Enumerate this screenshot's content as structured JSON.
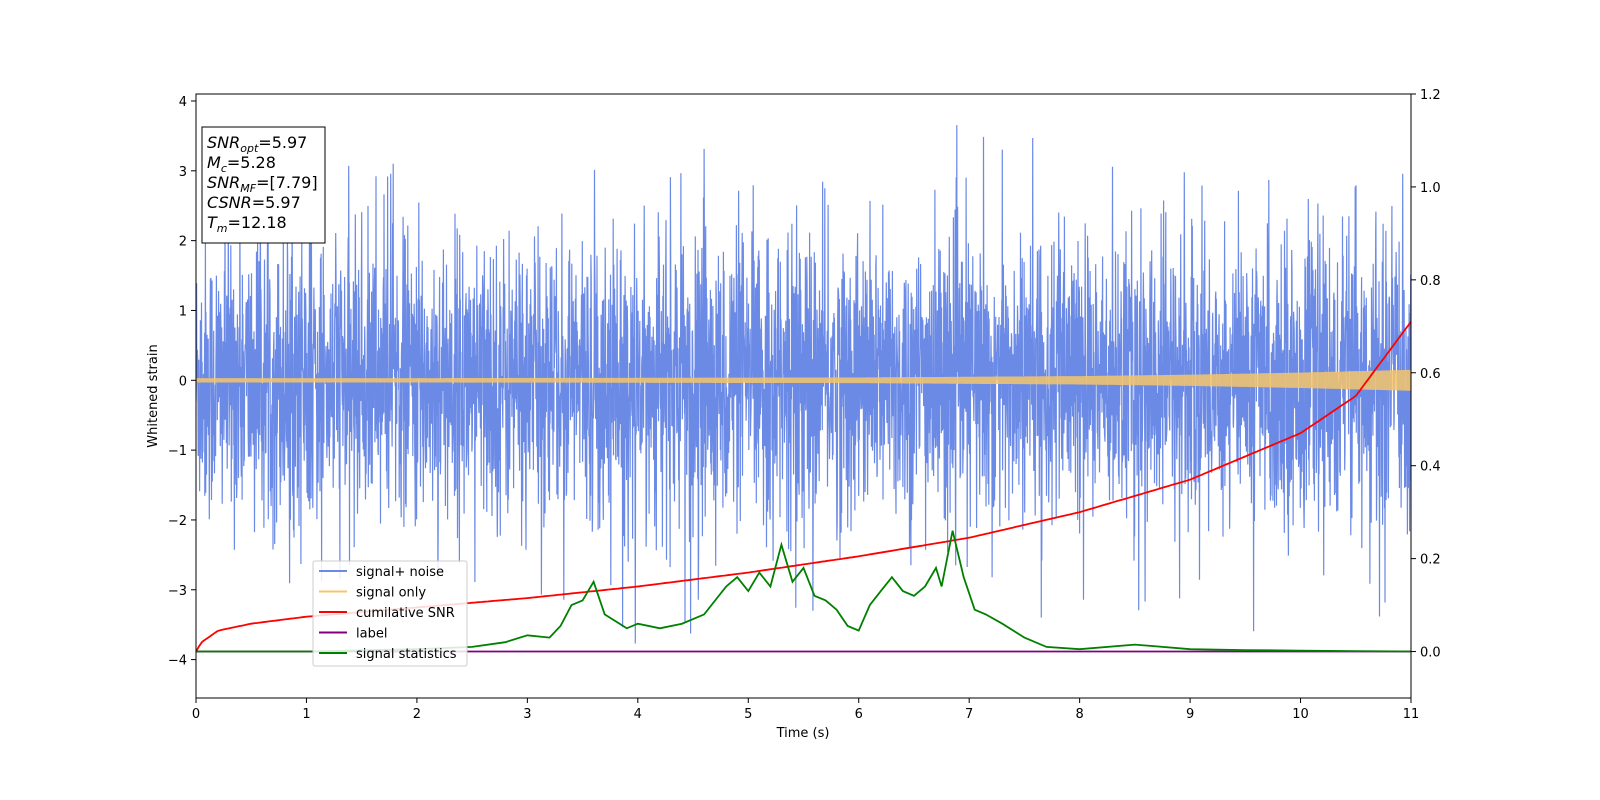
{
  "chart_data": {
    "type": "line",
    "xlabel": "Time (s)",
    "ylabel": "Whitened strain",
    "xlim": [
      0,
      11
    ],
    "ylim": [
      -4.55,
      4.1
    ],
    "y2lim": [
      -0.1,
      1.2
    ],
    "xticks": [
      0,
      1,
      2,
      3,
      4,
      5,
      6,
      7,
      8,
      9,
      10,
      11
    ],
    "yticks": [
      -4,
      -3,
      -2,
      -1,
      0,
      1,
      2,
      3,
      4
    ],
    "y2ticks": [
      "0.0",
      "0.2",
      "0.4",
      "0.6",
      "0.8",
      "1.0",
      "1.2"
    ],
    "grid": false,
    "legend_position": "lower-left",
    "colors": {
      "noise": "#6b8ae6",
      "signal": "#f5c46a",
      "csnr": "#ff0000",
      "label": "#800080",
      "stats": "#008000"
    },
    "series": [
      {
        "name": "signal+ noise",
        "color": "#6b8ae6",
        "description_stats": {
          "mean": 0,
          "sd": 1.0
        },
        "envelope_x": [
          0,
          1,
          2,
          3,
          4,
          5,
          6,
          7,
          8,
          9,
          10,
          11
        ],
        "envelope_upper": [
          2.7,
          3.1,
          3.1,
          3.2,
          3.2,
          3.4,
          3.3,
          3.7,
          3.3,
          3.2,
          3.0,
          3.1
        ],
        "envelope_lower": [
          -3.2,
          -3.1,
          -3.2,
          -3.2,
          -3.8,
          -3.7,
          -3.4,
          -3.6,
          -3.4,
          -3.6,
          -4.1,
          -3.3
        ]
      },
      {
        "name": "signal only",
        "color": "#f5c46a",
        "amplitude_x": [
          0,
          2,
          4,
          6,
          8,
          9,
          10,
          11
        ],
        "amplitude": [
          0.03,
          0.03,
          0.035,
          0.04,
          0.06,
          0.08,
          0.11,
          0.15
        ]
      },
      {
        "name": "cumilative SNR",
        "color": "#ff0000",
        "axis": "y2",
        "x": [
          0,
          0.05,
          0.2,
          0.5,
          1,
          2,
          3,
          4,
          5,
          6,
          7,
          8,
          9,
          10,
          10.5,
          11
        ],
        "values": [
          0.0,
          0.02,
          0.045,
          0.06,
          0.075,
          0.095,
          0.115,
          0.14,
          0.17,
          0.205,
          0.245,
          0.3,
          0.37,
          0.47,
          0.55,
          0.71
        ]
      },
      {
        "name": "label",
        "color": "#800080",
        "axis": "y2",
        "x": [
          0,
          11
        ],
        "values": [
          0,
          0
        ]
      },
      {
        "name": "signal statistics",
        "color": "#008000",
        "axis": "y2",
        "x": [
          0,
          1,
          2,
          2.5,
          2.8,
          3.0,
          3.2,
          3.3,
          3.4,
          3.5,
          3.6,
          3.7,
          3.9,
          4.0,
          4.2,
          4.4,
          4.6,
          4.8,
          4.9,
          5.0,
          5.1,
          5.2,
          5.3,
          5.4,
          5.5,
          5.6,
          5.7,
          5.8,
          5.9,
          6.0,
          6.1,
          6.2,
          6.3,
          6.4,
          6.5,
          6.6,
          6.7,
          6.75,
          6.85,
          6.95,
          7.05,
          7.15,
          7.3,
          7.5,
          7.7,
          8.0,
          8.5,
          9.0,
          9.5,
          10.0,
          10.5,
          11.0
        ],
        "values": [
          0,
          0,
          0.005,
          0.01,
          0.02,
          0.035,
          0.03,
          0.055,
          0.1,
          0.11,
          0.15,
          0.08,
          0.05,
          0.06,
          0.05,
          0.06,
          0.08,
          0.14,
          0.16,
          0.13,
          0.17,
          0.14,
          0.23,
          0.15,
          0.18,
          0.12,
          0.11,
          0.09,
          0.055,
          0.045,
          0.1,
          0.13,
          0.16,
          0.13,
          0.12,
          0.14,
          0.18,
          0.14,
          0.26,
          0.16,
          0.09,
          0.08,
          0.06,
          0.03,
          0.01,
          0.005,
          0.015,
          0.005,
          0.003,
          0.002,
          0.001,
          0.0
        ]
      }
    ],
    "annotation": {
      "lines": [
        {
          "sym": "SNR",
          "sub": "opt",
          "value": "=5.97"
        },
        {
          "sym": "M",
          "sub": "c",
          "value": "=5.28"
        },
        {
          "sym": "SNR",
          "sub": "MF",
          "value": "=[7.79]"
        },
        {
          "sym": "CSNR",
          "sub": "",
          "value": "=5.97"
        },
        {
          "sym": "T",
          "sub": "m",
          "value": "=12.18"
        }
      ]
    }
  }
}
